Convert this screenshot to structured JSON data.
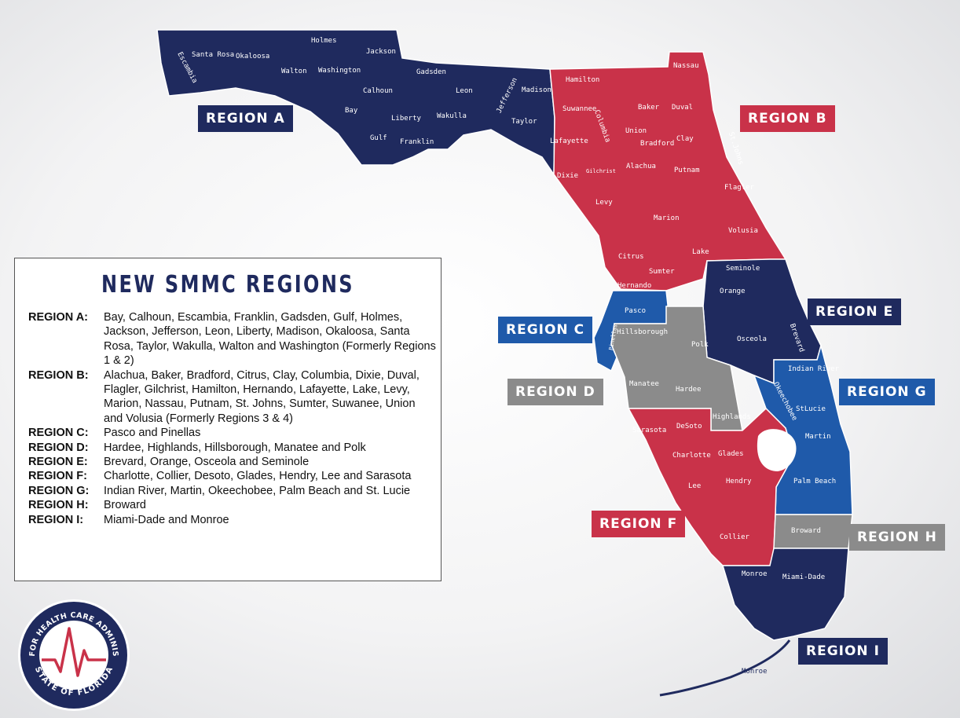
{
  "colors": {
    "navy": "#1f2a5e",
    "red": "#c93249",
    "blue": "#1f5aaa",
    "gray": "#8b8b8b"
  },
  "regions": {
    "a": "REGION A",
    "b": "REGION B",
    "c": "REGION C",
    "d": "REGION D",
    "e": "REGION E",
    "f": "REGION F",
    "g": "REGION G",
    "h": "REGION H",
    "i": "REGION I"
  },
  "counties": {
    "escambia": "Escambia",
    "santa_rosa": "Santa Rosa",
    "okaloosa": "Okaloosa",
    "walton": "Walton",
    "holmes": "Holmes",
    "washington": "Washington",
    "jackson": "Jackson",
    "bay": "Bay",
    "calhoun": "Calhoun",
    "gadsden": "Gadsden",
    "leon": "Leon",
    "jefferson": "Jefferson",
    "madison": "Madison",
    "liberty": "Liberty",
    "gulf": "Gulf",
    "franklin": "Franklin",
    "wakulla": "Wakulla",
    "taylor": "Taylor",
    "hamilton": "Hamilton",
    "nassau": "Nassau",
    "suwannee": "Suwannee",
    "columbia": "Columbia",
    "baker": "Baker",
    "duval": "Duval",
    "union": "Union",
    "bradford": "Bradford",
    "lafayette": "Lafayette",
    "clay": "Clay",
    "st_johns": "St.Johns",
    "dixie": "Dixie",
    "gilchrist": "Gilchrist",
    "alachua": "Alachua",
    "putnam": "Putnam",
    "flagler": "Flagler",
    "levy": "Levy",
    "marion": "Marion",
    "volusia": "Volusia",
    "citrus": "Citrus",
    "lake": "Lake",
    "sumter": "Sumter",
    "hernando": "Hernando",
    "seminole": "Seminole",
    "orange": "Orange",
    "osceola": "Osceola",
    "brevard": "Brevard",
    "pasco": "Pasco",
    "pinellas": "Pinellas",
    "hillsborough": "Hillsborough",
    "polk": "Polk",
    "manatee": "Manatee",
    "hardee": "Hardee",
    "highlands": "Highlands",
    "indian_river": "Indian River",
    "okeechobee": "Okeechobee",
    "st_lucie": "StLucie",
    "martin": "Martin",
    "palm_beach": "Palm Beach",
    "sarasota": "Sarasota",
    "desoto": "DeSoto",
    "charlotte": "Charlotte",
    "glades": "Glades",
    "hendry": "Hendry",
    "lee": "Lee",
    "collier": "Collier",
    "broward": "Broward",
    "monroe": "Monroe",
    "miami_dade": "Miami-Dade",
    "monroe_keys": "Monroe"
  },
  "legend": {
    "title": "NEW SMMC REGIONS",
    "rows": [
      {
        "key": "REGION A:",
        "value": "Bay, Calhoun, Escambia, Franklin, Gadsden, Gulf, Holmes, Jackson, Jefferson, Leon, Liberty, Madison, Okaloosa, Santa Rosa, Taylor, Wakulla, Walton and Washington (Formerly Regions 1 & 2)"
      },
      {
        "key": "REGION B:",
        "value": "Alachua, Baker, Bradford, Citrus, Clay, Columbia, Dixie, Duval, Flagler, Gilchrist, Hamilton, Hernando, Lafayette, Lake, Levy, Marion, Nassau, Putnam, St. Johns, Sumter, Suwanee, Union and Volusia (Formerly Regions 3 & 4)"
      },
      {
        "key": "REGION C:",
        "value": "Pasco and Pinellas"
      },
      {
        "key": "REGION D:",
        "value": "Hardee, Highlands, Hillsborough, Manatee and Polk"
      },
      {
        "key": "REGION E:",
        "value": "Brevard, Orange, Osceola and Seminole"
      },
      {
        "key": "REGION F:",
        "value": "Charlotte, Collier, Desoto, Glades, Hendry, Lee and Sarasota"
      },
      {
        "key": "REGION G:",
        "value": "Indian River, Martin, Okeechobee, Palm Beach and St. Lucie"
      },
      {
        "key": "REGION H:",
        "value": "Broward"
      },
      {
        "key": "REGION I:",
        "value": "Miami-Dade and Monroe"
      }
    ]
  },
  "logo": {
    "top_text": "AGENCY FOR HEALTH CARE ADMINISTRATION",
    "bottom_text": "STATE OF FLORIDA"
  }
}
